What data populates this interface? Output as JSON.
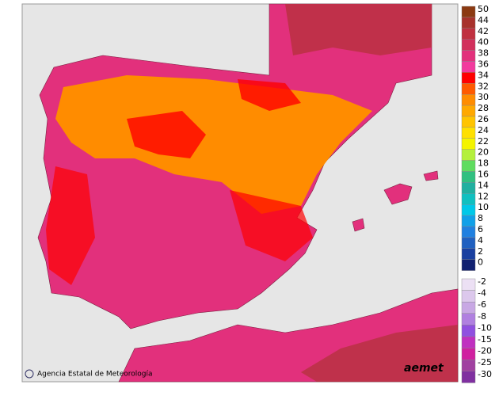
{
  "map": {
    "legend": [
      {
        "value": 50,
        "color": "#8b3a12"
      },
      {
        "value": 44,
        "color": "#a8322c"
      },
      {
        "value": 42,
        "color": "#c03040"
      },
      {
        "value": 40,
        "color": "#d22f5c"
      },
      {
        "value": 38,
        "color": "#e2307c"
      },
      {
        "value": 36,
        "color": "#f23a9e"
      },
      {
        "value": 34,
        "color": "#ff0000"
      },
      {
        "value": 32,
        "color": "#ff5a00"
      },
      {
        "value": 30,
        "color": "#ff8c00"
      },
      {
        "value": 28,
        "color": "#ffa800"
      },
      {
        "value": 26,
        "color": "#ffc400"
      },
      {
        "value": 24,
        "color": "#ffe000"
      },
      {
        "value": 22,
        "color": "#f4f400"
      },
      {
        "value": 20,
        "color": "#b4f03c"
      },
      {
        "value": 18,
        "color": "#60dc60"
      },
      {
        "value": 16,
        "color": "#30c080"
      },
      {
        "value": 14,
        "color": "#20b0a0"
      },
      {
        "value": 12,
        "color": "#10c0c0"
      },
      {
        "value": 10,
        "color": "#00c8e8"
      },
      {
        "value": 8,
        "color": "#10a0e8"
      },
      {
        "value": 6,
        "color": "#2080e0"
      },
      {
        "value": 4,
        "color": "#2060c0"
      },
      {
        "value": 2,
        "color": "#1a40a0"
      },
      {
        "value": 0,
        "color": "#102070"
      },
      {
        "value": -2,
        "color": "#ece0f4"
      },
      {
        "value": -4,
        "color": "#dcc8ec"
      },
      {
        "value": -6,
        "color": "#c8a8e4"
      },
      {
        "value": -8,
        "color": "#b080e0"
      },
      {
        "value": -10,
        "color": "#9050e0"
      },
      {
        "value": -15,
        "color": "#c030c0"
      },
      {
        "value": -20,
        "color": "#d020a0"
      },
      {
        "value": -25,
        "color": "#a040a0"
      },
      {
        "value": -30,
        "color": "#8030a0"
      }
    ],
    "credit": "Agencia Estatal de Meteorología",
    "logo": "aemet"
  }
}
